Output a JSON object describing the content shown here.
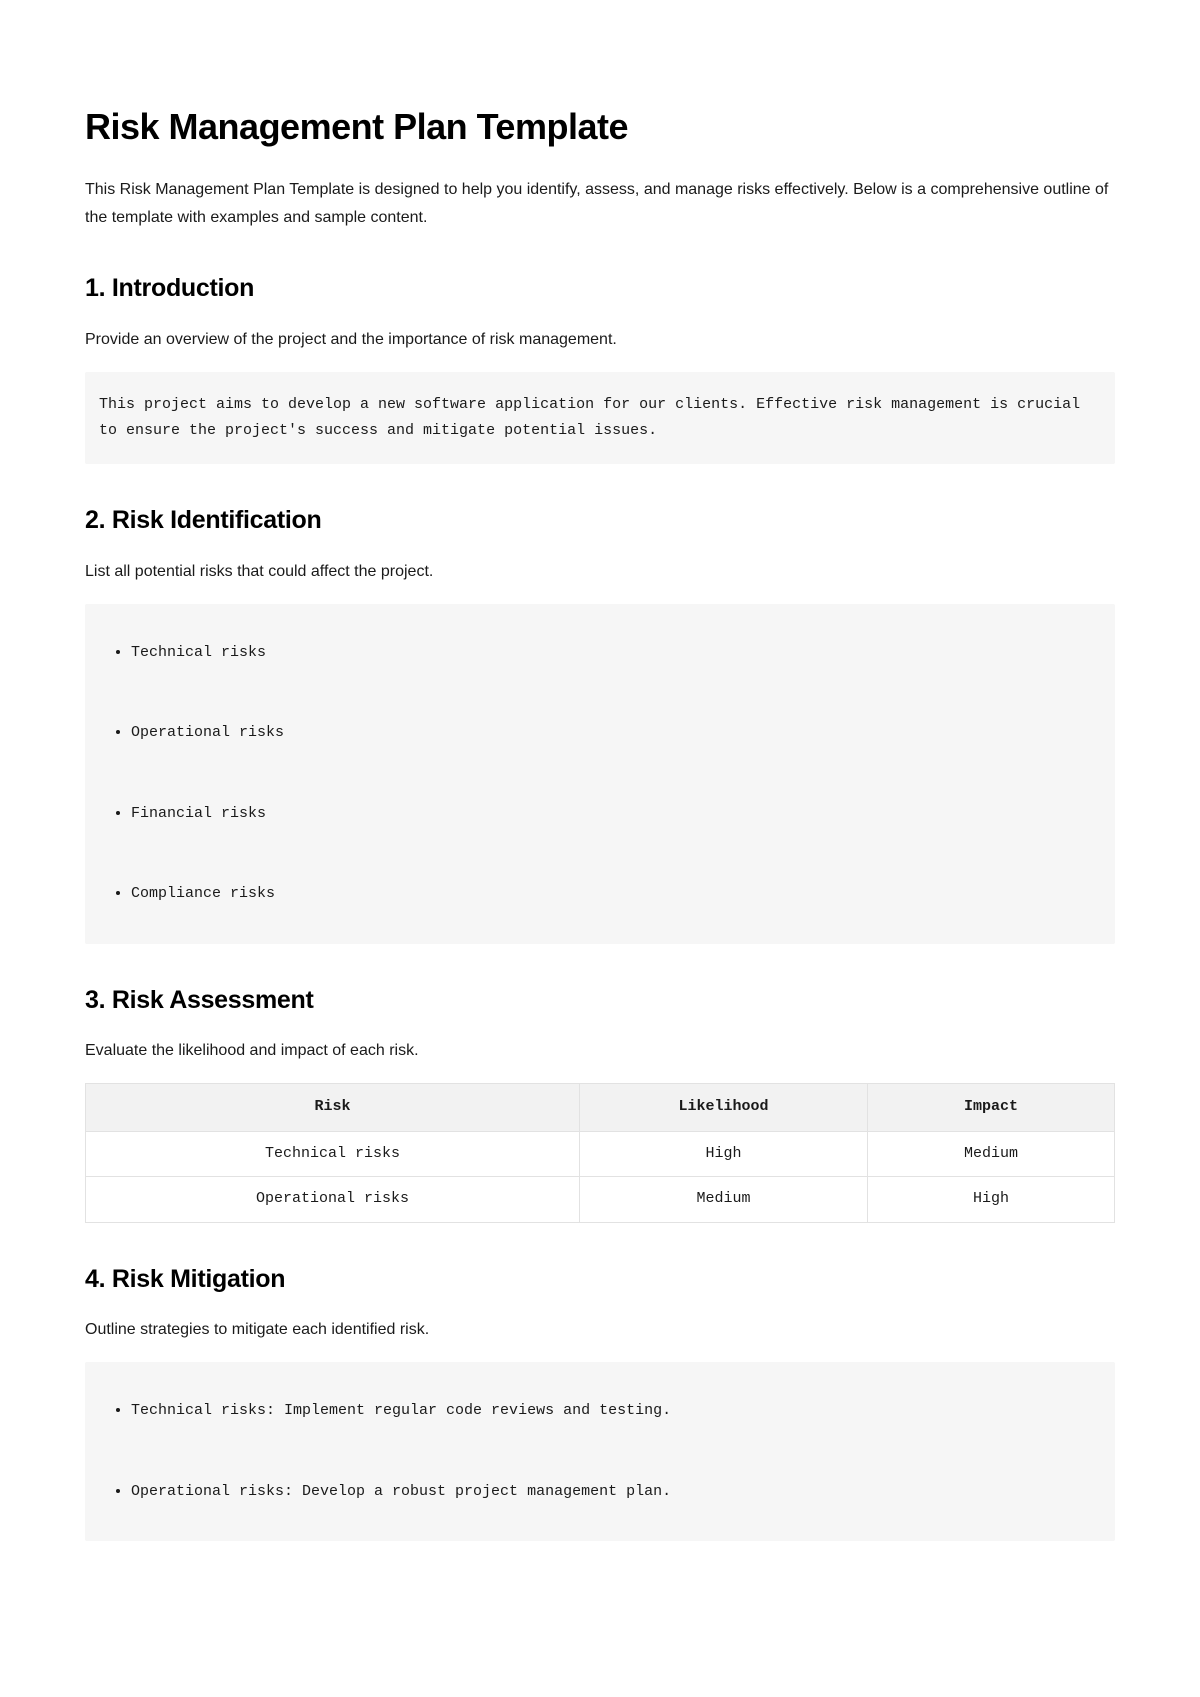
{
  "title": "Risk Management Plan Template",
  "intro": "This Risk Management Plan Template is designed to help you identify, assess, and manage risks effectively. Below is a comprehensive outline of the template with examples and sample content.",
  "styles": {
    "background_color": "#ffffff",
    "text_color": "#1a1a1a",
    "heading_color": "#000000",
    "code_bg": "#f6f6f6",
    "table_header_bg": "#f2f2f2",
    "table_border": "#e2e2e2",
    "body_font": "-apple-system, BlinkMacSystemFont, 'Segoe UI', Helvetica, Arial, sans-serif",
    "mono_font": "'SFMono-Regular', Consolas, 'Liberation Mono', Menlo, monospace",
    "h1_fontsize": 36,
    "h2_fontsize": 25,
    "body_fontsize": 16,
    "mono_fontsize": 15
  },
  "sections": {
    "introduction": {
      "heading": "1. Introduction",
      "desc": "Provide an overview of the project and the importance of risk management.",
      "code": "This project aims to develop a new software application for our clients. Effective risk management is crucial to ensure the project's success and mitigate potential issues."
    },
    "identification": {
      "heading": "2. Risk Identification",
      "desc": "List all potential risks that could affect the project.",
      "items": [
        "Technical risks",
        "Operational risks",
        "Financial risks",
        "Compliance risks"
      ]
    },
    "assessment": {
      "heading": "3. Risk Assessment",
      "desc": "Evaluate the likelihood and impact of each risk.",
      "table": {
        "columns": [
          "Risk",
          "Likelihood",
          "Impact"
        ],
        "column_widths_pct": [
          48,
          28,
          24
        ],
        "rows": [
          [
            "Technical risks",
            "High",
            "Medium"
          ],
          [
            "Operational risks",
            "Medium",
            "High"
          ]
        ]
      }
    },
    "mitigation": {
      "heading": "4. Risk Mitigation",
      "desc": "Outline strategies to mitigate each identified risk.",
      "items": [
        "Technical risks: Implement regular code reviews and testing.",
        "Operational risks: Develop a robust project management plan."
      ]
    }
  }
}
